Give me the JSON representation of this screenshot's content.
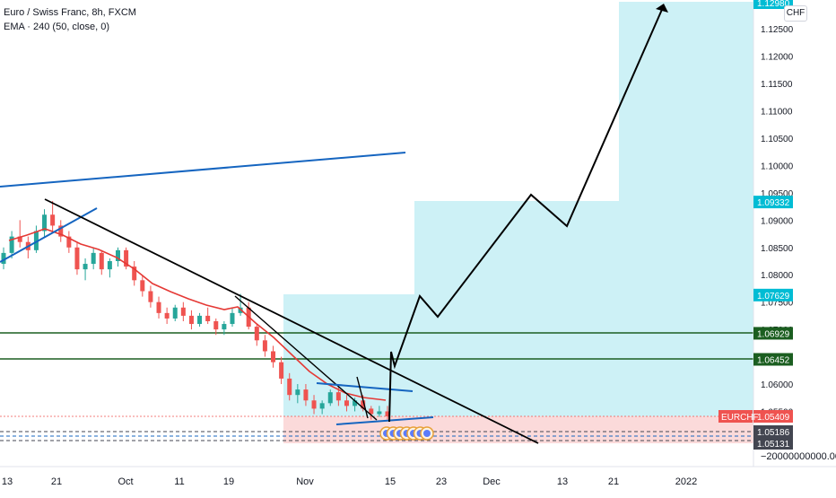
{
  "legend": {
    "symbol_title": "Euro / Swiss Franc, 8h, FXCM",
    "indicator": "EMA · 240 (50, close, 0)"
  },
  "currency_button": "CHF",
  "colors": {
    "candle_up": "#26a69a",
    "candle_down": "#ef5350",
    "ema": "#e53935",
    "trendline_blue": "#1565c0",
    "trendline_black": "#000000",
    "support_green": "#1b5e20",
    "target_zone": "#b2ebf2",
    "stop_zone": "#ffcdd2",
    "price_label_cyan": "#00bcd4",
    "price_label_green": "#1b5e20",
    "price_label_red": "#ef5350",
    "price_label_dark": "#434651"
  },
  "chart_data": {
    "type": "candlestick",
    "symbol": "EURCHF",
    "timeframe": "8h",
    "y_range": [
      1.0495,
      1.1298
    ],
    "price_ticks": [
      "1.12500",
      "1.12000",
      "1.11500",
      "1.11000",
      "1.10500",
      "1.10000",
      "1.09500",
      "1.09000",
      "1.08500",
      "1.08000",
      "1.07500",
      "1.07000",
      "1.06500",
      "1.06000",
      "1.05500"
    ],
    "time_ticks": [
      "13",
      "21",
      "Oct",
      "11",
      "19",
      "Nov",
      "15",
      "23",
      "Dec",
      "13",
      "21",
      "2022"
    ],
    "price_labels": [
      {
        "value": "1.12980",
        "style": "cyan"
      },
      {
        "value": "1.09332",
        "style": "cyan"
      },
      {
        "value": "1.07629",
        "style": "cyan"
      },
      {
        "value": "1.06929",
        "style": "green"
      },
      {
        "value": "1.06452",
        "style": "green"
      },
      {
        "value": "1.05409",
        "style": "red",
        "tag": "EURCHF"
      },
      {
        "value": "1.05186",
        "style": "dark"
      },
      {
        "value": "1.05131",
        "style": "dark"
      }
    ],
    "volume_axis_label": "−20000000000.00000",
    "horizontal_levels": [
      1.06929,
      1.06452
    ],
    "target_zones": [
      {
        "from": 1.05409,
        "to": 1.07629
      },
      {
        "from": 1.05409,
        "to": 1.09332
      },
      {
        "from": 1.05409,
        "to": 1.1298
      }
    ],
    "stop_zone": {
      "from": 1.05131,
      "to": 1.05409
    },
    "candles": [
      [
        1.082,
        1.085,
        1.081,
        1.084
      ],
      [
        1.084,
        1.088,
        1.083,
        1.087
      ],
      [
        1.087,
        1.09,
        1.085,
        1.086
      ],
      [
        1.086,
        1.087,
        1.083,
        1.0845
      ],
      [
        1.0845,
        1.089,
        1.084,
        1.088
      ],
      [
        1.088,
        1.092,
        1.087,
        1.091
      ],
      [
        1.091,
        1.0935,
        1.088,
        1.089
      ],
      [
        1.089,
        1.09,
        1.086,
        1.087
      ],
      [
        1.087,
        1.088,
        1.084,
        1.085
      ],
      [
        1.085,
        1.086,
        1.08,
        1.081
      ],
      [
        1.081,
        1.083,
        1.079,
        1.082
      ],
      [
        1.082,
        1.085,
        1.081,
        1.084
      ],
      [
        1.084,
        1.0845,
        1.08,
        1.081
      ],
      [
        1.081,
        1.083,
        1.0795,
        1.0825
      ],
      [
        1.0825,
        1.085,
        1.0815,
        1.0845
      ],
      [
        1.0845,
        1.085,
        1.081,
        1.0815
      ],
      [
        1.0815,
        1.0825,
        1.078,
        1.079
      ],
      [
        1.079,
        1.08,
        1.076,
        1.077
      ],
      [
        1.077,
        1.078,
        1.074,
        1.075
      ],
      [
        1.075,
        1.076,
        1.072,
        1.073
      ],
      [
        1.073,
        1.074,
        1.071,
        1.072
      ],
      [
        1.072,
        1.0745,
        1.0715,
        1.074
      ],
      [
        1.074,
        1.075,
        1.0715,
        1.0725
      ],
      [
        1.0725,
        1.0735,
        1.07,
        1.071
      ],
      [
        1.071,
        1.073,
        1.0705,
        1.0725
      ],
      [
        1.0725,
        1.074,
        1.071,
        1.0715
      ],
      [
        1.0715,
        1.072,
        1.069,
        1.07
      ],
      [
        1.07,
        1.0715,
        1.069,
        1.071
      ],
      [
        1.071,
        1.074,
        1.0705,
        1.073
      ],
      [
        1.073,
        1.0765,
        1.0725,
        1.074
      ],
      [
        1.074,
        1.075,
        1.07,
        1.0705
      ],
      [
        1.0705,
        1.071,
        1.067,
        1.068
      ],
      [
        1.068,
        1.069,
        1.065,
        1.066
      ],
      [
        1.066,
        1.067,
        1.063,
        1.064
      ],
      [
        1.064,
        1.065,
        1.06,
        1.061
      ],
      [
        1.061,
        1.062,
        1.057,
        1.058
      ],
      [
        1.058,
        1.06,
        1.0565,
        1.059
      ],
      [
        1.059,
        1.06,
        1.056,
        1.057
      ],
      [
        1.057,
        1.058,
        1.0545,
        1.0555
      ],
      [
        1.0555,
        1.057,
        1.0545,
        1.0565
      ],
      [
        1.0565,
        1.059,
        1.056,
        1.0585
      ],
      [
        1.0585,
        1.0595,
        1.056,
        1.057
      ],
      [
        1.057,
        1.058,
        1.055,
        1.056
      ],
      [
        1.056,
        1.0575,
        1.055,
        1.057
      ],
      [
        1.057,
        1.058,
        1.055,
        1.0555
      ],
      [
        1.0555,
        1.056,
        1.0535,
        1.0545
      ],
      [
        1.0545,
        1.056,
        1.054,
        1.055
      ],
      [
        1.055,
        1.056,
        1.0535,
        1.0541
      ]
    ]
  }
}
